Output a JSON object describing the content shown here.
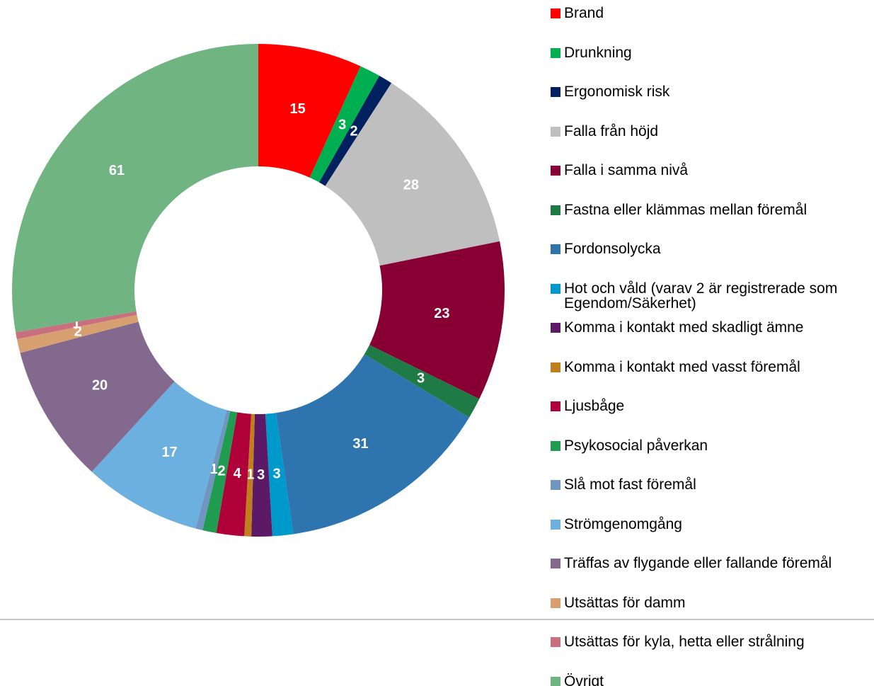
{
  "chart_data": {
    "type": "donut",
    "categories": [
      "Brand",
      "Drunkning",
      "Ergonomisk risk",
      "Falla från höjd",
      "Falla i samma nivå",
      "Fastna eller klämmas mellan föremål",
      "Fordonsolycka",
      "Hot och våld (varav 2 är registrerade som Egendom/Säkerhet)",
      "Komma i kontakt med skadligt ämne",
      "Komma i kontakt med vasst föremål",
      "Ljusbåge",
      "Psykosocial påverkan",
      "Slå mot fast föremål",
      "Strömgenomgång",
      "Träffas av flygande eller fallande föremål",
      "Utsättas för damm",
      "Utsättas för kyla, hetta eller strålning",
      "Övrigt"
    ],
    "values": [
      15,
      3,
      2,
      28,
      23,
      3,
      31,
      3,
      3,
      1,
      4,
      2,
      1,
      17,
      20,
      2,
      1,
      61
    ],
    "colors": [
      "#ff0000",
      "#00b050",
      "#002060",
      "#bfbfbf",
      "#880033",
      "#1e7b45",
      "#2e75b0",
      "#0099cc",
      "#5c1a66",
      "#c07f1f",
      "#b0003a",
      "#1f9c50",
      "#7095c0",
      "#6bb0de",
      "#84698e",
      "#d8a070",
      "#c87080",
      "#70b482"
    ],
    "legend": "right"
  }
}
